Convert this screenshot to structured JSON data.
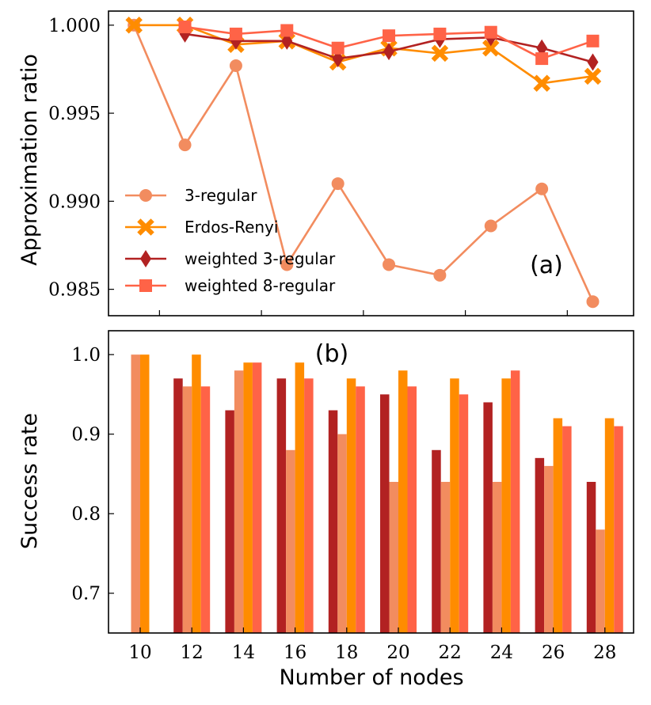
{
  "chart_data": [
    {
      "type": "line",
      "panel_label": "(a)",
      "ylabel": "Approximation ratio",
      "ylim": [
        0.9835,
        1.0008
      ],
      "xlim": [
        9.0,
        29.6
      ],
      "yticks": [
        0.985,
        0.99,
        0.995,
        1.0
      ],
      "ytick_labels": [
        "0.985",
        "0.990",
        "0.995",
        "1.000"
      ],
      "xticks": [
        10,
        12,
        14,
        16,
        18,
        20,
        22,
        24,
        26,
        28
      ],
      "legend_position": "center-left",
      "series": [
        {
          "name": "3-regular",
          "color": "#f28c5f",
          "marker": "circle",
          "x": [
            10,
            12,
            14,
            16,
            18,
            20,
            22,
            24,
            26,
            28
          ],
          "values": [
            1.0,
            0.9932,
            0.9977,
            0.9864,
            0.991,
            0.9864,
            0.9858,
            0.9886,
            0.9907,
            0.9843
          ]
        },
        {
          "name": "Erdos-Renyi",
          "color": "#ff8c00",
          "marker": "x",
          "x": [
            10,
            12,
            14,
            16,
            18,
            20,
            22,
            24,
            26,
            28
          ],
          "values": [
            1.0,
            1.0,
            0.9989,
            0.9991,
            0.9979,
            0.9987,
            0.9984,
            0.9987,
            0.9967,
            0.9971
          ]
        },
        {
          "name": "weighted 3-regular",
          "color": "#b22222",
          "marker": "diamond",
          "x": [
            12,
            14,
            16,
            18,
            20,
            22,
            24,
            26,
            28
          ],
          "values": [
            0.9995,
            0.9991,
            0.9991,
            0.9981,
            0.9985,
            0.9992,
            0.9993,
            0.9987,
            0.9979
          ]
        },
        {
          "name": "weighted 8-regular",
          "color": "#ff6347",
          "marker": "square",
          "x": [
            12,
            14,
            16,
            18,
            20,
            22,
            24,
            26,
            28
          ],
          "values": [
            0.9999,
            0.9995,
            0.9997,
            0.9987,
            0.9994,
            0.9995,
            0.9996,
            0.9981,
            0.9991
          ]
        }
      ]
    },
    {
      "type": "bar",
      "panel_label": "(b)",
      "xlabel": "Number of nodes",
      "ylabel": "Success rate",
      "ylim": [
        0.65,
        1.03
      ],
      "yticks": [
        0.7,
        0.8,
        0.9,
        1.0
      ],
      "ytick_labels": [
        "0.7",
        "0.8",
        "0.9",
        "1.0"
      ],
      "categories": [
        "10",
        "12",
        "14",
        "16",
        "18",
        "20",
        "22",
        "24",
        "26",
        "28"
      ],
      "series": [
        {
          "name": "weighted 3-regular",
          "color": "#b22222",
          "values": [
            null,
            0.97,
            0.93,
            0.97,
            0.93,
            0.95,
            0.88,
            0.94,
            0.87,
            0.84
          ]
        },
        {
          "name": "3-regular",
          "color": "#f28c5f",
          "values": [
            1.0,
            0.96,
            0.98,
            0.88,
            0.9,
            0.84,
            0.84,
            0.84,
            0.86,
            0.78
          ]
        },
        {
          "name": "Erdos-Renyi",
          "color": "#ff8c00",
          "values": [
            1.0,
            1.0,
            0.99,
            0.99,
            0.97,
            0.98,
            0.97,
            0.97,
            0.92,
            0.92
          ]
        },
        {
          "name": "weighted 8-regular",
          "color": "#ff6347",
          "values": [
            null,
            0.96,
            0.99,
            0.97,
            0.96,
            0.96,
            0.95,
            0.98,
            0.91,
            0.91
          ]
        }
      ]
    }
  ]
}
